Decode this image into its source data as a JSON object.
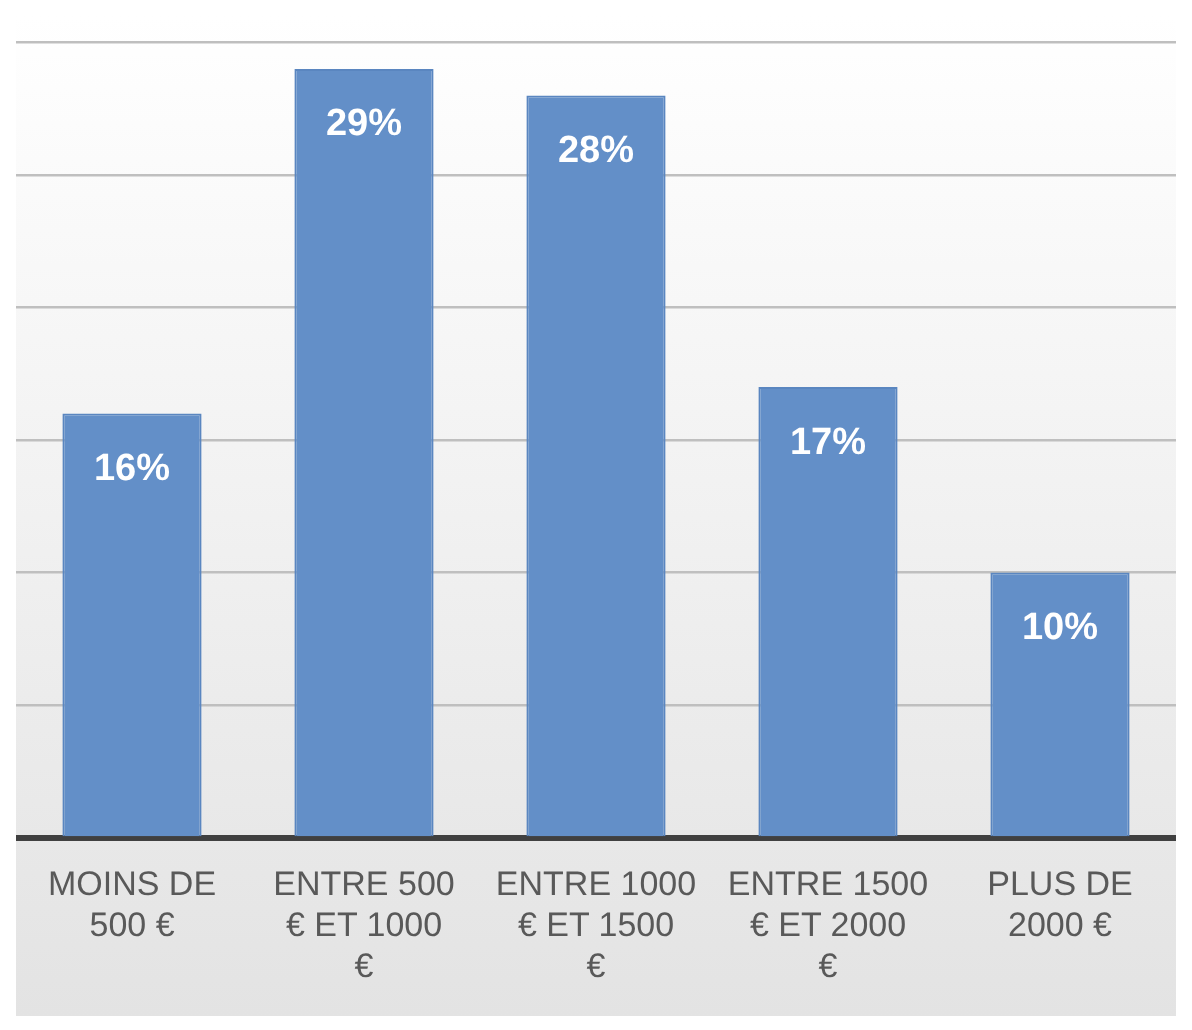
{
  "chart_data": {
    "type": "bar",
    "categories": [
      "MOINS DE 500 €",
      "ENTRE 500 € ET 1000 €",
      "ENTRE 1000 € ET 1500 €",
      "ENTRE 1500 € ET 2000 €",
      "PLUS DE 2000 €"
    ],
    "values": [
      16,
      29,
      28,
      17,
      10
    ],
    "color": "#638fc8",
    "data_labels": true,
    "value_labels": [
      "16%",
      "29%",
      "28%",
      "17%",
      "10%"
    ],
    "ylim": [
      0,
      31
    ],
    "yticks": [
      {
        "value": 0,
        "label": null
      },
      {
        "value": 5,
        "label": null
      },
      {
        "value": 10,
        "label": null
      },
      {
        "value": 15,
        "label": null
      },
      {
        "value": 20,
        "label": null
      },
      {
        "value": 25,
        "label": null
      },
      {
        "value": 30,
        "label": null
      }
    ],
    "grid": "y",
    "tick_labels": "x",
    "legend": false
  }
}
